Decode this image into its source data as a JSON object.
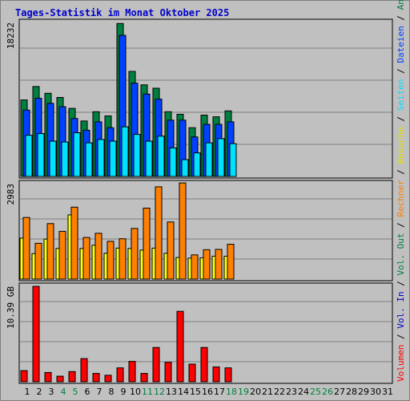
{
  "title": "Tages-Statistik im Monat Oktober 2025",
  "colors": {
    "anfragen": "#008040",
    "dateien": "#0040ff",
    "seiten": "#00e0ff",
    "besuche": "#ffff00",
    "rechner": "#ff8000",
    "volumen": "#ff0000",
    "weekend_label": "#008040",
    "background": "#c0c0c0"
  },
  "right_legend": [
    {
      "text": "Volumen",
      "color": "#ff0000"
    },
    {
      "text": " / ",
      "color": "#000000"
    },
    {
      "text": "Vol. In",
      "color": "#0000cc"
    },
    {
      "text": " / ",
      "color": "#000000"
    },
    {
      "text": "Vol. Out",
      "color": "#008040"
    },
    {
      "text": " / ",
      "color": "#000000"
    },
    {
      "text": "Rechner",
      "color": "#ff8000"
    },
    {
      "text": " / ",
      "color": "#000000"
    },
    {
      "text": "Besuche",
      "color": "#e0e000"
    },
    {
      "text": " / ",
      "color": "#000000"
    },
    {
      "text": "Seiten",
      "color": "#00e0ff"
    },
    {
      "text": " / ",
      "color": "#000000"
    },
    {
      "text": "Dateien",
      "color": "#0040ff"
    },
    {
      "text": " / ",
      "color": "#000000"
    },
    {
      "text": "Anfragen",
      "color": "#008040"
    }
  ],
  "chart_data": [
    {
      "type": "bar",
      "panel": "requests",
      "max_label": "18232",
      "ylim": [
        0,
        18232
      ],
      "x": [
        1,
        2,
        3,
        4,
        5,
        6,
        7,
        8,
        9,
        10,
        11,
        12,
        13,
        14,
        15,
        16,
        17,
        18
      ],
      "series": [
        {
          "name": "Anfragen",
          "values": [
            9100,
            10700,
            9900,
            9400,
            8100,
            6600,
            7700,
            7200,
            18200,
            12500,
            10900,
            10500,
            7700,
            7400,
            5800,
            7300,
            7100,
            7800
          ]
        },
        {
          "name": "Dateien",
          "values": [
            7900,
            9300,
            8700,
            8300,
            6900,
            5500,
            6500,
            5800,
            16800,
            11100,
            9800,
            9200,
            6700,
            6700,
            4700,
            6200,
            6200,
            6500
          ]
        },
        {
          "name": "Seiten",
          "values": [
            4900,
            5100,
            4200,
            4100,
            5200,
            4000,
            4400,
            4200,
            5900,
            5000,
            4200,
            4800,
            3400,
            2000,
            2800,
            4000,
            4500,
            3900
          ]
        }
      ]
    },
    {
      "type": "bar",
      "panel": "visits",
      "max_label": "2983",
      "ylim": [
        0,
        2983
      ],
      "x": [
        1,
        2,
        3,
        4,
        5,
        6,
        7,
        8,
        9,
        10,
        11,
        12,
        13,
        14,
        15,
        16,
        17,
        18
      ],
      "series": [
        {
          "name": "Besuche",
          "values": [
            1270,
            790,
            1240,
            950,
            1990,
            950,
            1050,
            800,
            960,
            950,
            900,
            960,
            800,
            670,
            650,
            660,
            710,
            710
          ]
        },
        {
          "name": "Rechner",
          "values": [
            1910,
            1110,
            1720,
            1480,
            2230,
            1290,
            1420,
            1170,
            1250,
            1570,
            2200,
            2860,
            1770,
            2980,
            750,
            910,
            920,
            1080
          ]
        }
      ]
    },
    {
      "type": "bar",
      "panel": "volume",
      "max_label": "10.39 GB",
      "ylim": [
        0,
        10.39
      ],
      "x": [
        1,
        2,
        3,
        4,
        5,
        6,
        7,
        8,
        9,
        10,
        11,
        12,
        13,
        14,
        15,
        16,
        17,
        18
      ],
      "series": [
        {
          "name": "Volumen",
          "values": [
            1.2,
            10.3,
            1.0,
            0.6,
            1.1,
            2.5,
            0.9,
            0.7,
            1.5,
            2.2,
            0.9,
            3.7,
            2.1,
            7.6,
            1.9,
            3.7,
            1.6,
            1.5
          ]
        }
      ]
    }
  ],
  "x_labels": [
    {
      "text": "1",
      "weekend": false
    },
    {
      "text": "2",
      "weekend": false
    },
    {
      "text": "3",
      "weekend": false
    },
    {
      "text": "4",
      "weekend": true
    },
    {
      "text": "5",
      "weekend": true
    },
    {
      "text": "6",
      "weekend": false
    },
    {
      "text": "7",
      "weekend": false
    },
    {
      "text": "8",
      "weekend": false
    },
    {
      "text": "9",
      "weekend": false
    },
    {
      "text": "10",
      "weekend": false
    },
    {
      "text": "11",
      "weekend": true
    },
    {
      "text": "12",
      "weekend": true
    },
    {
      "text": "13",
      "weekend": false
    },
    {
      "text": "14",
      "weekend": false
    },
    {
      "text": "15",
      "weekend": false
    },
    {
      "text": "16",
      "weekend": false
    },
    {
      "text": "17",
      "weekend": false
    },
    {
      "text": "18",
      "weekend": true
    },
    {
      "text": "19",
      "weekend": true
    },
    {
      "text": "20",
      "weekend": false
    },
    {
      "text": "21",
      "weekend": false
    },
    {
      "text": "22",
      "weekend": false
    },
    {
      "text": "23",
      "weekend": false
    },
    {
      "text": "24",
      "weekend": false
    },
    {
      "text": "25",
      "weekend": true
    },
    {
      "text": "26",
      "weekend": true
    },
    {
      "text": "27",
      "weekend": false
    },
    {
      "text": "28",
      "weekend": false
    },
    {
      "text": "29",
      "weekend": false
    },
    {
      "text": "30",
      "weekend": false
    },
    {
      "text": "31",
      "weekend": false
    }
  ]
}
